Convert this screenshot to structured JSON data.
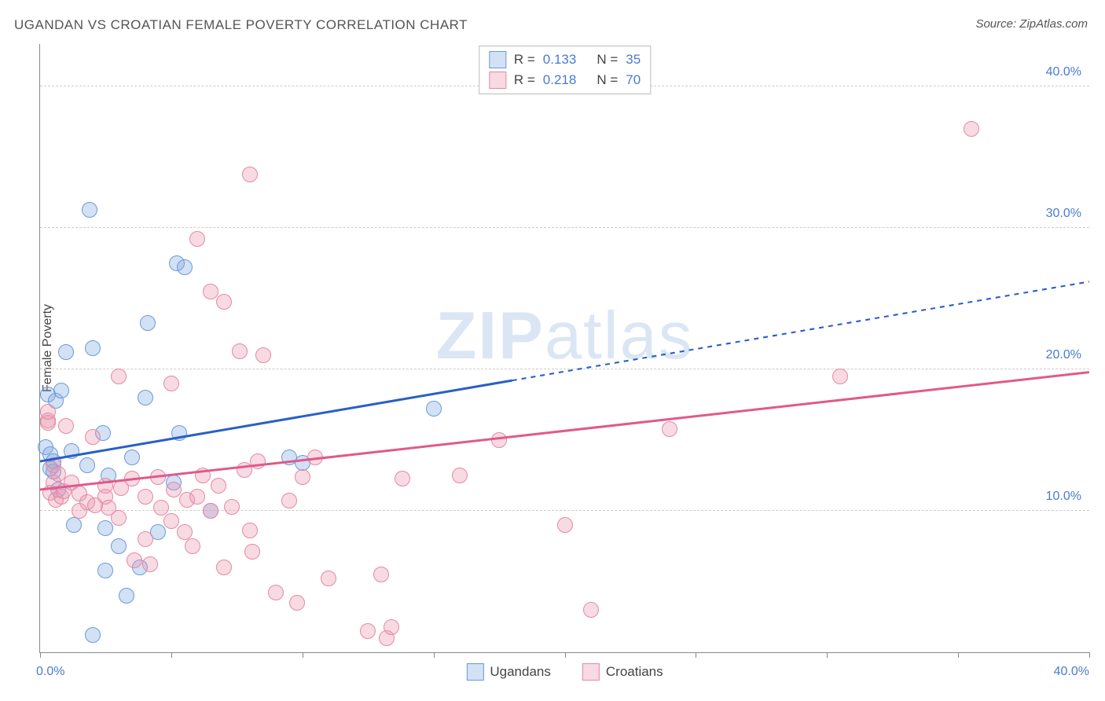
{
  "title": "UGANDAN VS CROATIAN FEMALE POVERTY CORRELATION CHART",
  "source": "Source: ZipAtlas.com",
  "ylabel": "Female Poverty",
  "watermark_zip": "ZIP",
  "watermark_atlas": "atlas",
  "chart": {
    "type": "scatter",
    "xlim": [
      0,
      40
    ],
    "ylim": [
      0,
      43
    ],
    "y_gridlines": [
      10,
      20,
      30,
      40
    ],
    "y_tick_labels": [
      "10.0%",
      "20.0%",
      "30.0%",
      "40.0%"
    ],
    "x_ticks": [
      0,
      5,
      10,
      15,
      20,
      25,
      30,
      35,
      40
    ],
    "x_min_label": "0.0%",
    "x_max_label": "40.0%",
    "background_color": "#ffffff",
    "grid_color": "#cccccc",
    "axis_color": "#888888",
    "tick_label_color": "#4a7bd0",
    "marker_radius": 9,
    "marker_stroke_width": 1.2,
    "series": [
      {
        "name": "Ugandans",
        "fill": "rgba(130,170,225,0.35)",
        "stroke": "#6a9bd8",
        "R": "0.133",
        "N": "35",
        "trend": {
          "x1": 0,
          "y1": 13.5,
          "x2": 40,
          "y2": 26.2,
          "solid_until_x": 18,
          "color": "#2a5fc7",
          "width": 3
        },
        "points": [
          [
            0.2,
            14.5
          ],
          [
            0.3,
            18.2
          ],
          [
            0.4,
            14.0
          ],
          [
            0.5,
            13.5
          ],
          [
            0.6,
            17.8
          ],
          [
            0.5,
            12.8
          ],
          [
            0.8,
            18.5
          ],
          [
            1.0,
            21.2
          ],
          [
            1.2,
            14.2
          ],
          [
            1.3,
            9.0
          ],
          [
            1.8,
            13.2
          ],
          [
            2.0,
            21.5
          ],
          [
            1.9,
            31.3
          ],
          [
            2.4,
            15.5
          ],
          [
            2.5,
            8.8
          ],
          [
            2.6,
            12.5
          ],
          [
            3.0,
            7.5
          ],
          [
            3.3,
            4.0
          ],
          [
            3.5,
            13.8
          ],
          [
            4.0,
            18.0
          ],
          [
            4.1,
            23.3
          ],
          [
            4.5,
            8.5
          ],
          [
            5.1,
            12.0
          ],
          [
            5.2,
            27.5
          ],
          [
            5.5,
            27.2
          ],
          [
            5.3,
            15.5
          ],
          [
            6.5,
            10.0
          ],
          [
            9.5,
            13.8
          ],
          [
            10.0,
            13.4
          ],
          [
            15.0,
            17.2
          ],
          [
            2.0,
            1.2
          ],
          [
            2.5,
            5.8
          ],
          [
            3.8,
            6.0
          ],
          [
            0.7,
            11.5
          ],
          [
            0.4,
            13.0
          ]
        ]
      },
      {
        "name": "Croatians",
        "fill": "rgba(235,150,175,0.35)",
        "stroke": "#e38aa4",
        "R": "0.218",
        "N": "70",
        "trend": {
          "x1": 0,
          "y1": 11.5,
          "x2": 40,
          "y2": 19.8,
          "solid_until_x": 40,
          "color": "#e05a8a",
          "width": 3
        },
        "points": [
          [
            0.3,
            16.4
          ],
          [
            0.3,
            16.2
          ],
          [
            0.4,
            11.3
          ],
          [
            0.5,
            13.2
          ],
          [
            0.5,
            12.0
          ],
          [
            0.6,
            10.8
          ],
          [
            0.7,
            12.6
          ],
          [
            0.8,
            11.0
          ],
          [
            0.9,
            11.4
          ],
          [
            1.0,
            16.0
          ],
          [
            1.2,
            12.0
          ],
          [
            1.5,
            11.2
          ],
          [
            1.5,
            10.0
          ],
          [
            1.8,
            10.6
          ],
          [
            2.0,
            15.2
          ],
          [
            2.1,
            10.4
          ],
          [
            2.5,
            11.0
          ],
          [
            2.5,
            11.8
          ],
          [
            2.6,
            10.2
          ],
          [
            3.0,
            9.5
          ],
          [
            3.0,
            19.5
          ],
          [
            3.1,
            11.6
          ],
          [
            3.5,
            12.3
          ],
          [
            3.6,
            6.5
          ],
          [
            4.0,
            8.0
          ],
          [
            4.0,
            11.0
          ],
          [
            4.2,
            6.2
          ],
          [
            4.5,
            12.4
          ],
          [
            4.6,
            10.2
          ],
          [
            5.0,
            19.0
          ],
          [
            5.0,
            9.3
          ],
          [
            5.1,
            11.5
          ],
          [
            5.5,
            8.5
          ],
          [
            5.6,
            10.8
          ],
          [
            5.8,
            7.5
          ],
          [
            6.0,
            29.2
          ],
          [
            6.0,
            11.0
          ],
          [
            6.2,
            12.5
          ],
          [
            6.5,
            25.5
          ],
          [
            6.5,
            10.0
          ],
          [
            6.8,
            11.8
          ],
          [
            7.0,
            24.8
          ],
          [
            7.0,
            6.0
          ],
          [
            7.3,
            10.3
          ],
          [
            7.6,
            21.3
          ],
          [
            7.8,
            12.9
          ],
          [
            8.0,
            33.8
          ],
          [
            8.0,
            8.6
          ],
          [
            8.1,
            7.1
          ],
          [
            8.3,
            13.5
          ],
          [
            8.5,
            21.0
          ],
          [
            9.0,
            4.2
          ],
          [
            9.5,
            10.7
          ],
          [
            9.8,
            3.5
          ],
          [
            10.0,
            12.4
          ],
          [
            10.5,
            13.8
          ],
          [
            11.0,
            5.2
          ],
          [
            12.5,
            1.5
          ],
          [
            13.0,
            5.5
          ],
          [
            13.2,
            1.0
          ],
          [
            13.4,
            1.8
          ],
          [
            13.8,
            12.3
          ],
          [
            16.0,
            12.5
          ],
          [
            17.5,
            15.0
          ],
          [
            20.0,
            9.0
          ],
          [
            21.0,
            3.0
          ],
          [
            24.0,
            15.8
          ],
          [
            30.5,
            19.5
          ],
          [
            35.5,
            37.0
          ],
          [
            0.3,
            17.0
          ]
        ]
      }
    ]
  },
  "legend": {
    "series1": "Ugandans",
    "series2": "Croatians"
  }
}
